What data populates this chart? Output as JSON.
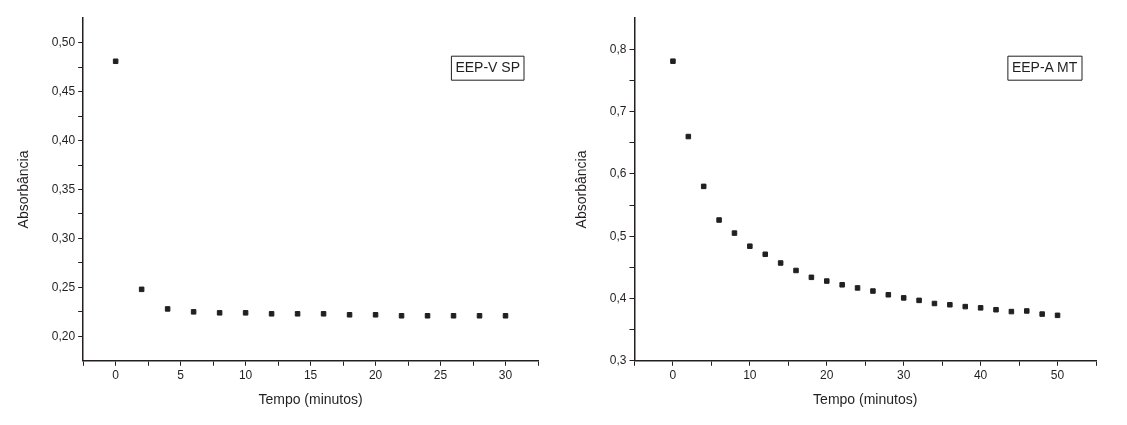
{
  "chart_data": [
    {
      "type": "scatter",
      "xlabel": "Tempo (minutos)",
      "ylabel": "Absorbância",
      "marker": "square",
      "legend": "top right",
      "x": [
        0,
        2,
        4,
        6,
        8,
        10,
        12,
        14,
        16,
        18,
        20,
        22,
        24,
        26,
        28,
        30
      ],
      "series": [
        {
          "name": "EEP-V SP",
          "color": "#231f20",
          "values": [
            0.481,
            0.248,
            0.228,
            0.225,
            0.224,
            0.224,
            0.223,
            0.223,
            0.223,
            0.222,
            0.222,
            0.221,
            0.221,
            0.221,
            0.221,
            0.221
          ]
        }
      ],
      "xlim": [
        -2.5,
        32.5
      ],
      "xticks": [
        {
          "value": -2.5,
          "label": null
        },
        0,
        {
          "value": 2.5,
          "label": null
        },
        5,
        {
          "value": 7.5,
          "label": null
        },
        10,
        {
          "value": 12.5,
          "label": null
        },
        15,
        {
          "value": 17.5,
          "label": null
        },
        20,
        {
          "value": 22.5,
          "label": null
        },
        25,
        {
          "value": 27.5,
          "label": null
        },
        30,
        {
          "value": 32.5,
          "label": null
        }
      ],
      "ylim": [
        0.175,
        0.525
      ],
      "yticks": [
        {
          "value": 0.2,
          "label": "0,20"
        },
        {
          "value": 0.225,
          "label": null
        },
        {
          "value": 0.25,
          "label": "0,25"
        },
        {
          "value": 0.275,
          "label": null
        },
        {
          "value": 0.3,
          "label": "0,30"
        },
        {
          "value": 0.325,
          "label": null
        },
        {
          "value": 0.35,
          "label": "0,35"
        },
        {
          "value": 0.375,
          "label": null
        },
        {
          "value": 0.4,
          "label": "0,40"
        },
        {
          "value": 0.425,
          "label": null
        },
        {
          "value": 0.45,
          "label": "0,45"
        },
        {
          "value": 0.475,
          "label": null
        },
        {
          "value": 0.5,
          "label": "0,50"
        }
      ]
    },
    {
      "type": "scatter",
      "xlabel": "Tempo (minutos)",
      "ylabel": "Absorbância",
      "marker": "square",
      "legend": "top right",
      "x": [
        0,
        2,
        4,
        6,
        8,
        10,
        12,
        14,
        16,
        18,
        20,
        22,
        24,
        26,
        28,
        30,
        32,
        34,
        36,
        38,
        40,
        42,
        44,
        46,
        48,
        50
      ],
      "series": [
        {
          "name": "EEP-A MT",
          "color": "#231f20",
          "values": [
            0.781,
            0.66,
            0.58,
            0.526,
            0.505,
            0.484,
            0.471,
            0.457,
            0.445,
            0.434,
            0.428,
            0.422,
            0.417,
            0.412,
            0.406,
            0.401,
            0.397,
            0.392,
            0.39,
            0.387,
            0.385,
            0.382,
            0.379,
            0.38,
            0.375,
            0.373
          ]
        }
      ],
      "xlim": [
        -5,
        55
      ],
      "xticks": [
        {
          "value": -5,
          "label": null
        },
        0,
        {
          "value": 5,
          "label": null
        },
        10,
        {
          "value": 15,
          "label": null
        },
        20,
        {
          "value": 25,
          "label": null
        },
        30,
        {
          "value": 35,
          "label": null
        },
        40,
        {
          "value": 45,
          "label": null
        },
        50,
        {
          "value": 55,
          "label": null
        }
      ],
      "ylim": [
        0.3,
        0.85
      ],
      "yticks": [
        {
          "value": 0.3,
          "label": "0,3"
        },
        {
          "value": 0.35,
          "label": null
        },
        {
          "value": 0.4,
          "label": "0,4"
        },
        {
          "value": 0.45,
          "label": null
        },
        {
          "value": 0.5,
          "label": "0,5"
        },
        {
          "value": 0.55,
          "label": null
        },
        {
          "value": 0.6,
          "label": "0,6"
        },
        {
          "value": 0.65,
          "label": null
        },
        {
          "value": 0.7,
          "label": "0,7"
        },
        {
          "value": 0.75,
          "label": null
        },
        {
          "value": 0.8,
          "label": "0,8"
        }
      ]
    }
  ]
}
